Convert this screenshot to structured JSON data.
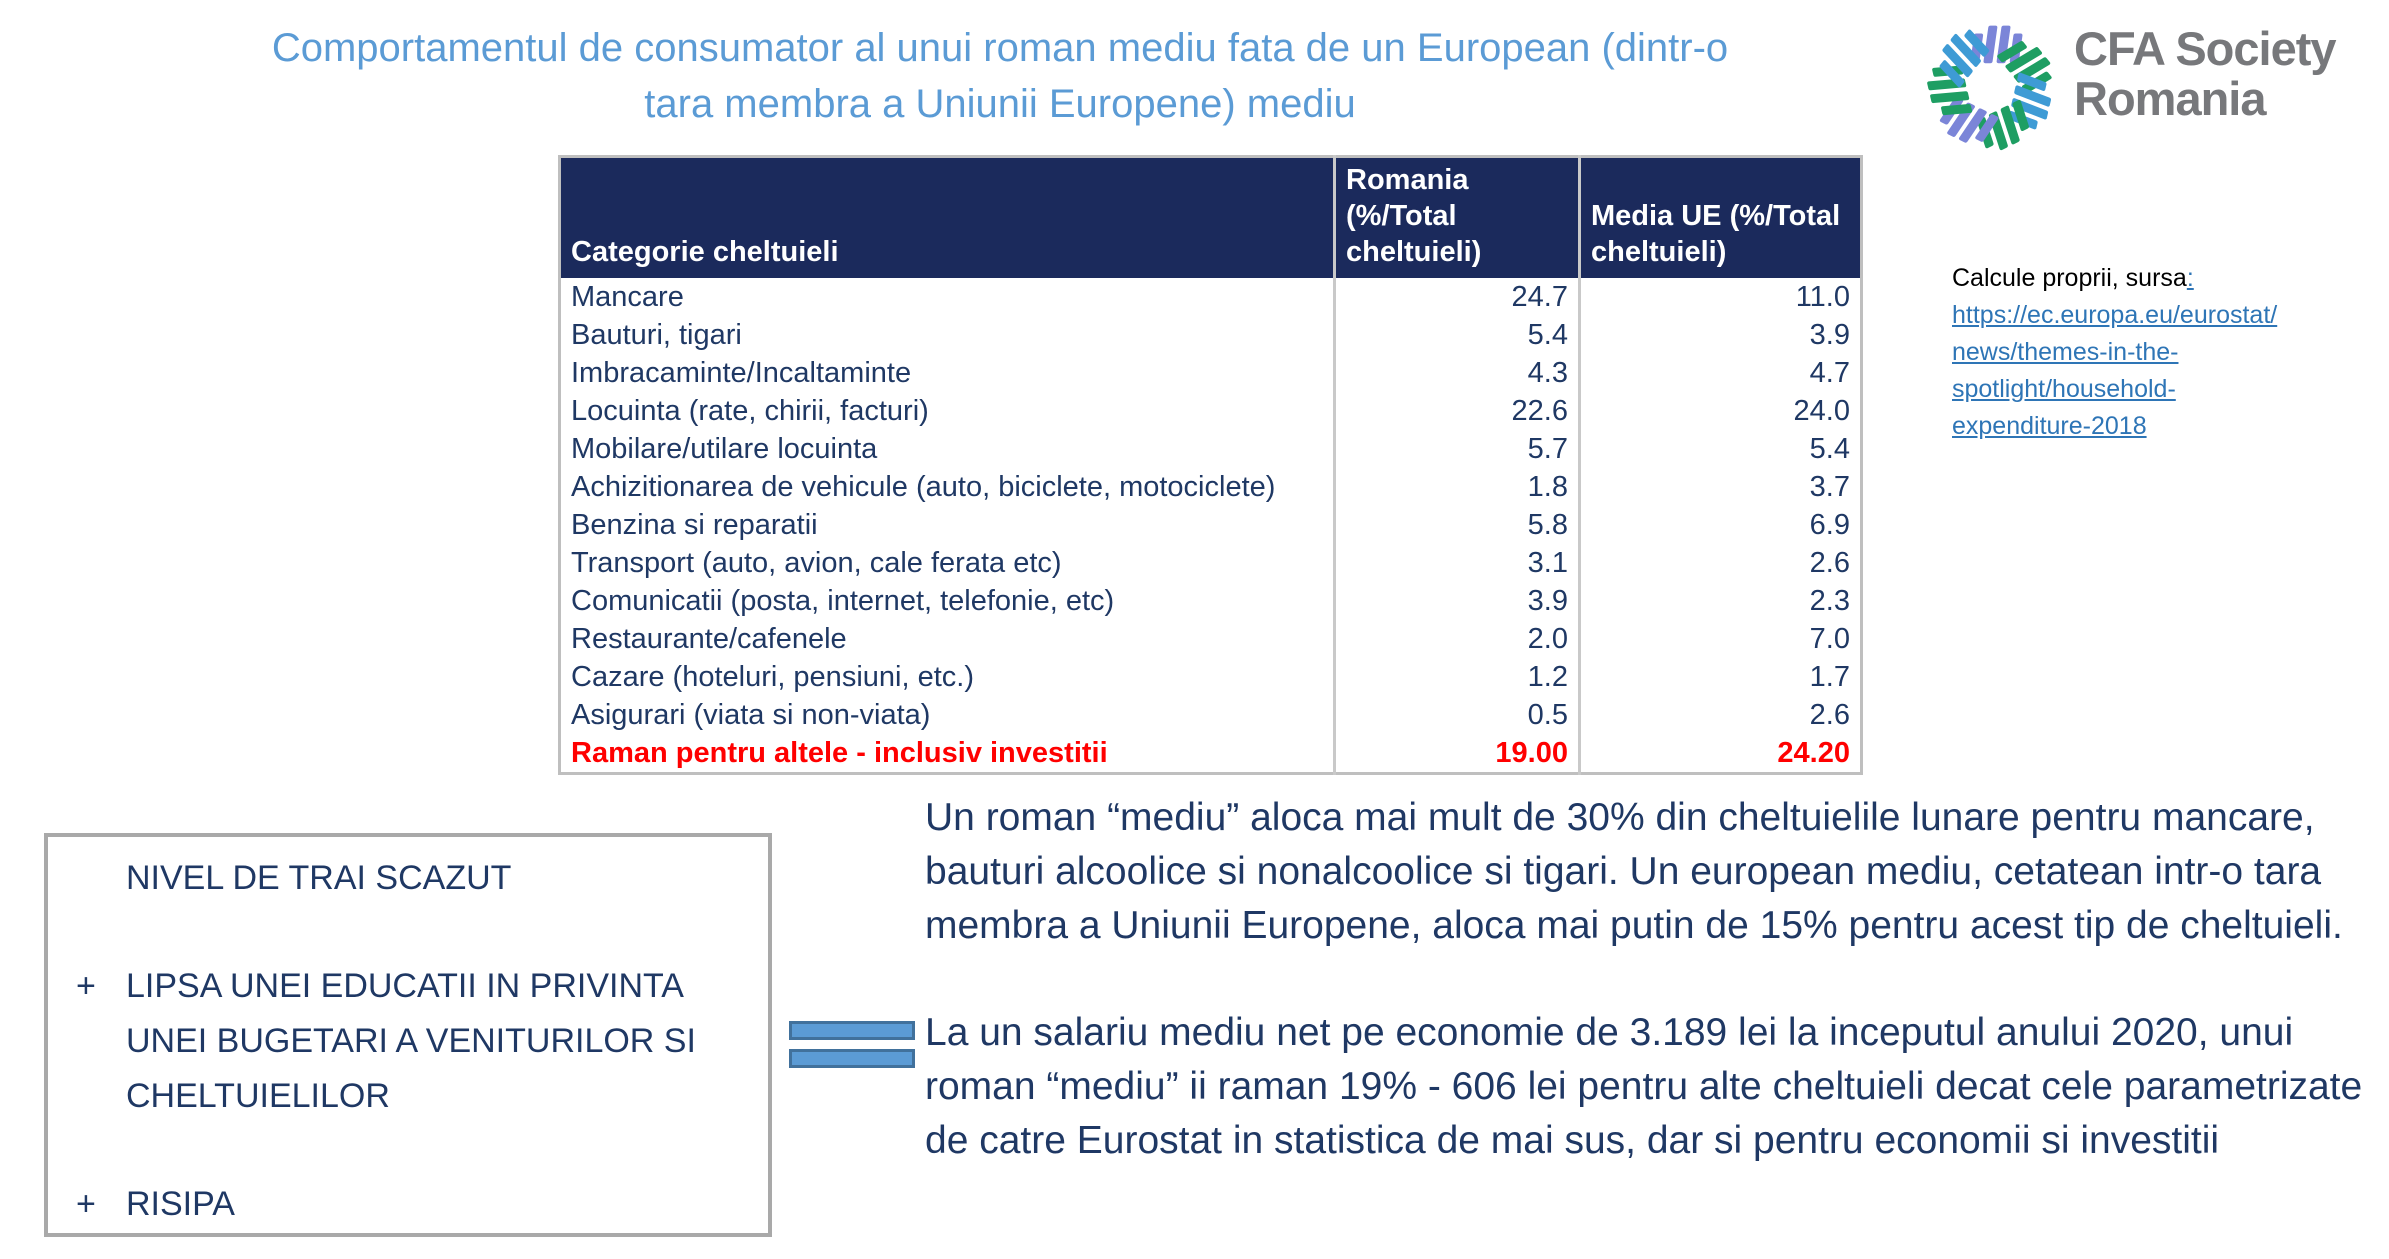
{
  "title_lines": [
    "Comportamentul de consumator al unui roman mediu fata de un European (dintr-o",
    "tara membra a Uniunii Europene) mediu"
  ],
  "logo": {
    "line1": "CFA Society",
    "line2": "Romania",
    "icon": "cfa-pinwheel-icon",
    "colors": {
      "blue": "#3E9BD5",
      "green": "#1E9E63",
      "purple": "#7B85D8",
      "text_gray": "#77787B"
    }
  },
  "table": {
    "headers": [
      "Categorie cheltuieli",
      "Romania  (%/Total cheltuieli)",
      "Media UE (%/Total cheltuieli)"
    ],
    "rows": [
      {
        "categorie": "Mancare",
        "romania": "24.7",
        "media_ue": "11.0"
      },
      {
        "categorie": "Bauturi, tigari",
        "romania": "5.4",
        "media_ue": "3.9"
      },
      {
        "categorie": "Imbracaminte/Incaltaminte",
        "romania": "4.3",
        "media_ue": "4.7"
      },
      {
        "categorie": "Locuinta (rate, chirii, facturi)",
        "romania": "22.6",
        "media_ue": "24.0"
      },
      {
        "categorie": "Mobilare/utilare locuinta",
        "romania": "5.7",
        "media_ue": "5.4"
      },
      {
        "categorie": "Achizitionarea de vehicule (auto, biciclete, motociclete)",
        "romania": "1.8",
        "media_ue": "3.7"
      },
      {
        "categorie": "Benzina si reparatii",
        "romania": "5.8",
        "media_ue": "6.9"
      },
      {
        "categorie": "Transport (auto, avion, cale ferata etc)",
        "romania": "3.1",
        "media_ue": "2.6"
      },
      {
        "categorie": "Comunicatii (posta, internet, telefonie, etc)",
        "romania": "3.9",
        "media_ue": "2.3"
      },
      {
        "categorie": "Restaurante/cafenele",
        "romania": "2.0",
        "media_ue": "7.0"
      },
      {
        "categorie": "Cazare (hoteluri, pensiuni, etc.)",
        "romania": "1.2",
        "media_ue": "1.7"
      },
      {
        "categorie": "Asigurari (viata si non-viata)",
        "romania": "0.5",
        "media_ue": "2.6"
      },
      {
        "categorie": "Raman pentru altele - inclusiv investitii",
        "romania": "19.00",
        "media_ue": "24.20",
        "highlight": true
      }
    ]
  },
  "source": {
    "label": "Calcule proprii, sursa",
    "colon": ":",
    "link_lines": [
      "https://ec.europa.eu/eurostat/",
      "news/themes-in-the-",
      "spotlight/household-",
      "expenditure-2018"
    ]
  },
  "note_box": {
    "items": [
      {
        "marker": "",
        "text": "NIVEL DE TRAI SCAZUT"
      },
      {
        "marker": "+",
        "text": "LIPSA UNEI EDUCATII IN PRIVINTA UNEI BUGETARI A VENITURILOR SI CHELTUIELILOR"
      },
      {
        "marker": "+",
        "text": "RISIPA"
      }
    ]
  },
  "equals_shape": "equals-sign",
  "paragraphs": [
    "Un roman “mediu” aloca mai mult de  30% din cheltuielile lunare pentru mancare, bauturi alcoolice si nonalcoolice si tigari. Un european mediu, cetatean intr-o tara membra a Uniunii Europene, aloca mai putin de 15% pentru acest tip de cheltuieli.",
    "La un salariu mediu net pe economie de 3.189 lei la inceputul anului 2020, unui roman “mediu” ii raman 19% - 606 lei pentru alte cheltuieli decat cele parametrizate de catre Eurostat in statistica de mai sus, dar si pentru economii si investitii"
  ],
  "colors": {
    "title_blue": "#5B9BD5",
    "navy_text": "#1F3864",
    "header_bg": "#1B2A5C",
    "highlight_red": "#FF0000",
    "link_blue": "#2E75B6",
    "equals_fill": "#5B9BD5",
    "equals_border": "#41719C"
  }
}
